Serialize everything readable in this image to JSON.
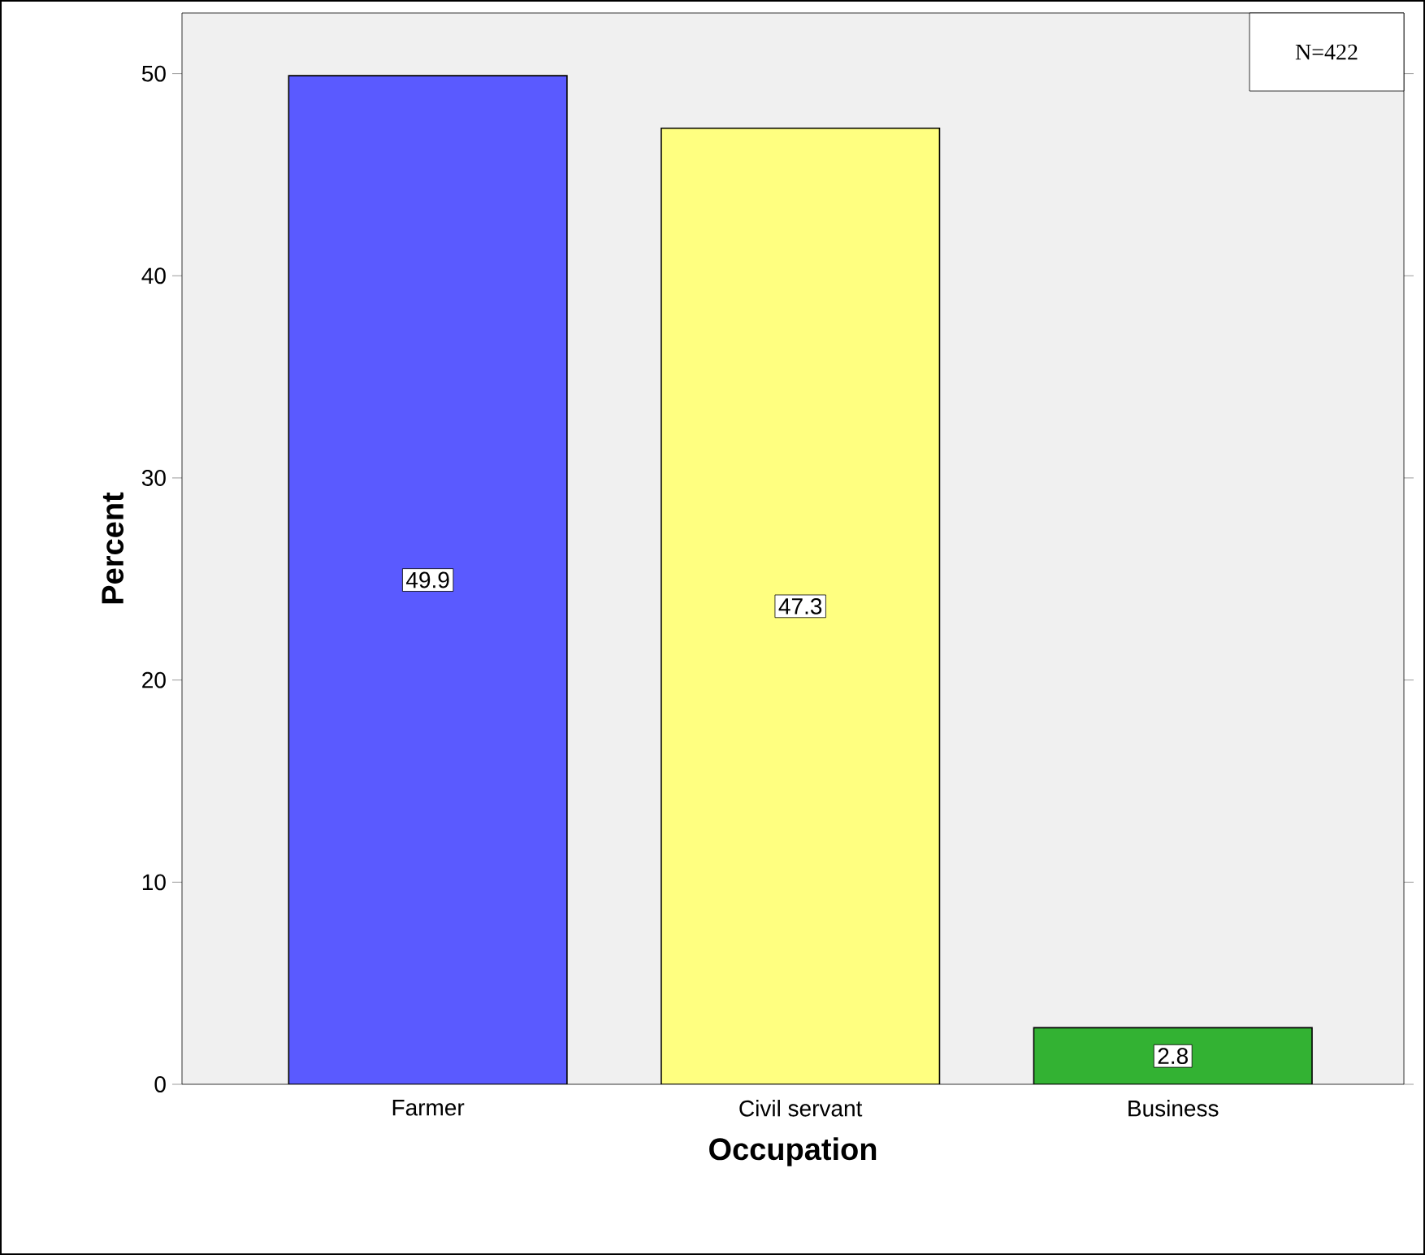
{
  "chart_data": {
    "type": "bar",
    "xlabel": "Occupation",
    "ylabel": "Percent",
    "categories": [
      "Farmer",
      "Civil servant",
      "Business"
    ],
    "values": [
      49.9,
      47.3,
      2.8
    ],
    "colors": [
      "#5a5aff",
      "#ffff80",
      "#33b233"
    ],
    "ylim": [
      0,
      53
    ],
    "yticks": [
      0,
      10,
      20,
      30,
      40,
      50
    ],
    "data_labels": true,
    "grid": false,
    "annotations": [
      "N=422"
    ]
  }
}
